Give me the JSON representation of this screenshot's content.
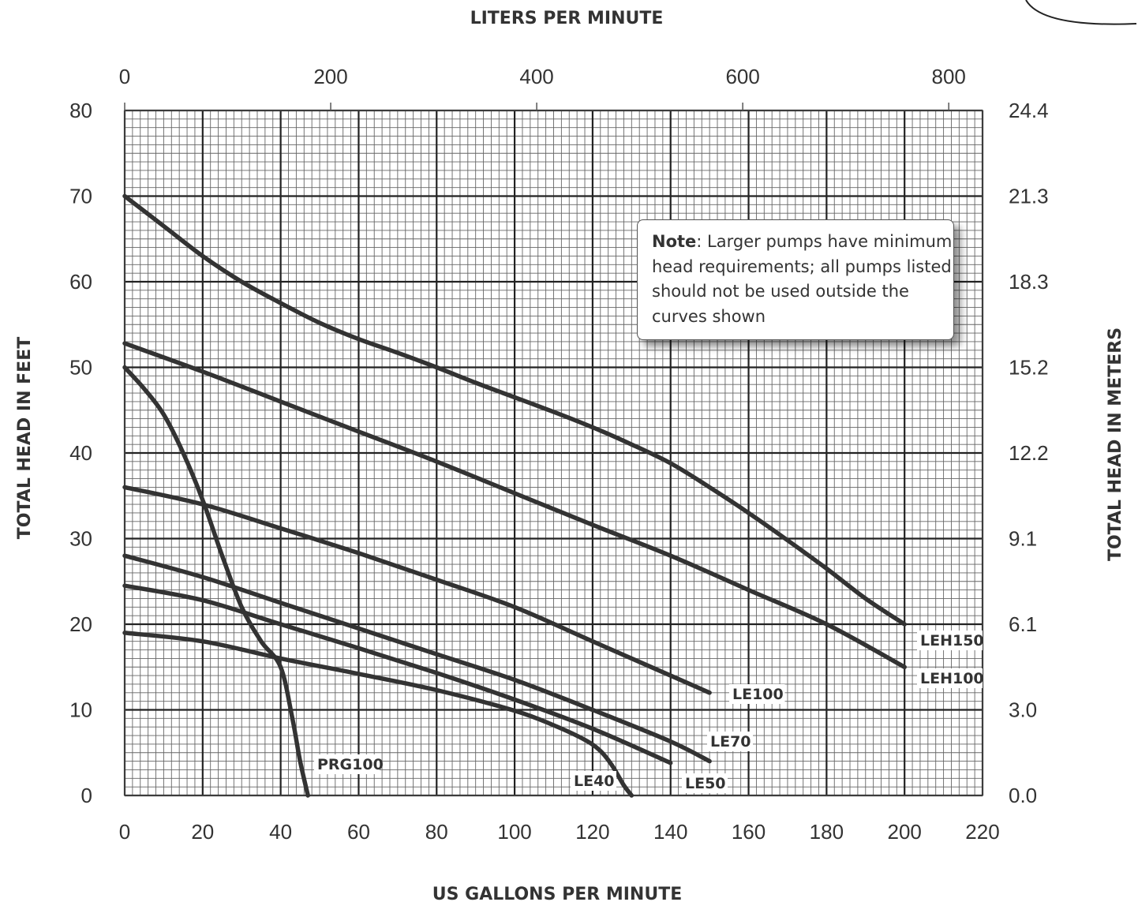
{
  "chart_data": {
    "type": "line",
    "title": "",
    "xlabel": "US GALLONS PER MINUTE",
    "x2label": "LITERS PER MINUTE",
    "ylabel": "TOTAL HEAD IN FEET",
    "y2label": "TOTAL HEAD IN METERS",
    "xlim": [
      0,
      220
    ],
    "ylim": [
      0,
      80
    ],
    "x2lim": [
      0,
      832.8
    ],
    "y2lim": [
      0,
      24.4
    ],
    "x_ticks": [
      "0",
      "20",
      "40",
      "60",
      "80",
      "100",
      "120",
      "140",
      "160",
      "180",
      "200",
      "220"
    ],
    "y_ticks": [
      "0",
      "10",
      "20",
      "30",
      "40",
      "50",
      "60",
      "70",
      "80"
    ],
    "x2_ticks": [
      "0",
      "200",
      "400",
      "600",
      "800"
    ],
    "y2_ticks": [
      "0.0",
      "3.0",
      "6.1",
      "9.1",
      "12.2",
      "15.2",
      "18.3",
      "21.3",
      "24.4"
    ],
    "grid": true,
    "series": [
      {
        "name": "LEH150",
        "x": [
          0,
          10,
          20,
          30,
          40,
          50,
          60,
          70,
          80,
          90,
          100,
          110,
          120,
          130,
          140,
          150,
          160,
          170,
          180,
          190,
          200
        ],
        "y": [
          70,
          66.5,
          63,
          60,
          57.5,
          55.2,
          53.3,
          51.7,
          50,
          48.2,
          46.5,
          44.8,
          43,
          41,
          38.8,
          36,
          33,
          29.8,
          26.5,
          23,
          20
        ]
      },
      {
        "name": "LEH100",
        "x": [
          0,
          20,
          40,
          60,
          80,
          100,
          120,
          140,
          160,
          180,
          200
        ],
        "y": [
          52.8,
          49.5,
          46,
          42.5,
          39,
          35.3,
          31.6,
          28,
          24,
          20,
          15
        ]
      },
      {
        "name": "LE100",
        "x": [
          0,
          20,
          40,
          60,
          80,
          100,
          120,
          150
        ],
        "y": [
          36,
          34,
          31.2,
          28.3,
          25.2,
          22,
          18,
          12
        ]
      },
      {
        "name": "LE70",
        "x": [
          0,
          20,
          40,
          60,
          80,
          100,
          120,
          140,
          150
        ],
        "y": [
          28,
          25.5,
          22.5,
          19.5,
          16.5,
          13.5,
          10,
          6.3,
          4
        ]
      },
      {
        "name": "LE50",
        "x": [
          0,
          20,
          40,
          60,
          80,
          100,
          120,
          140
        ],
        "y": [
          24.5,
          22.8,
          20,
          17.2,
          14.3,
          11.2,
          7.8,
          3.8
        ]
      },
      {
        "name": "LE40",
        "x": [
          0,
          20,
          40,
          60,
          80,
          100,
          110,
          118,
          122,
          125,
          128,
          130
        ],
        "y": [
          19,
          18,
          16,
          14.2,
          12.3,
          9.9,
          8.2,
          6.5,
          5.2,
          3.5,
          1.2,
          0
        ]
      },
      {
        "name": "PRG100",
        "x": [
          0,
          5,
          10,
          15,
          20,
          25,
          30,
          35,
          40,
          43,
          45,
          47
        ],
        "y": [
          50,
          47.5,
          44.5,
          40,
          34.5,
          28,
          22,
          18,
          15,
          9,
          4,
          0
        ]
      }
    ],
    "note": {
      "bold": "Note",
      "text": ": Larger pumps have minimum head requirements; all pumps listed should not be used outside the curves shown"
    }
  }
}
